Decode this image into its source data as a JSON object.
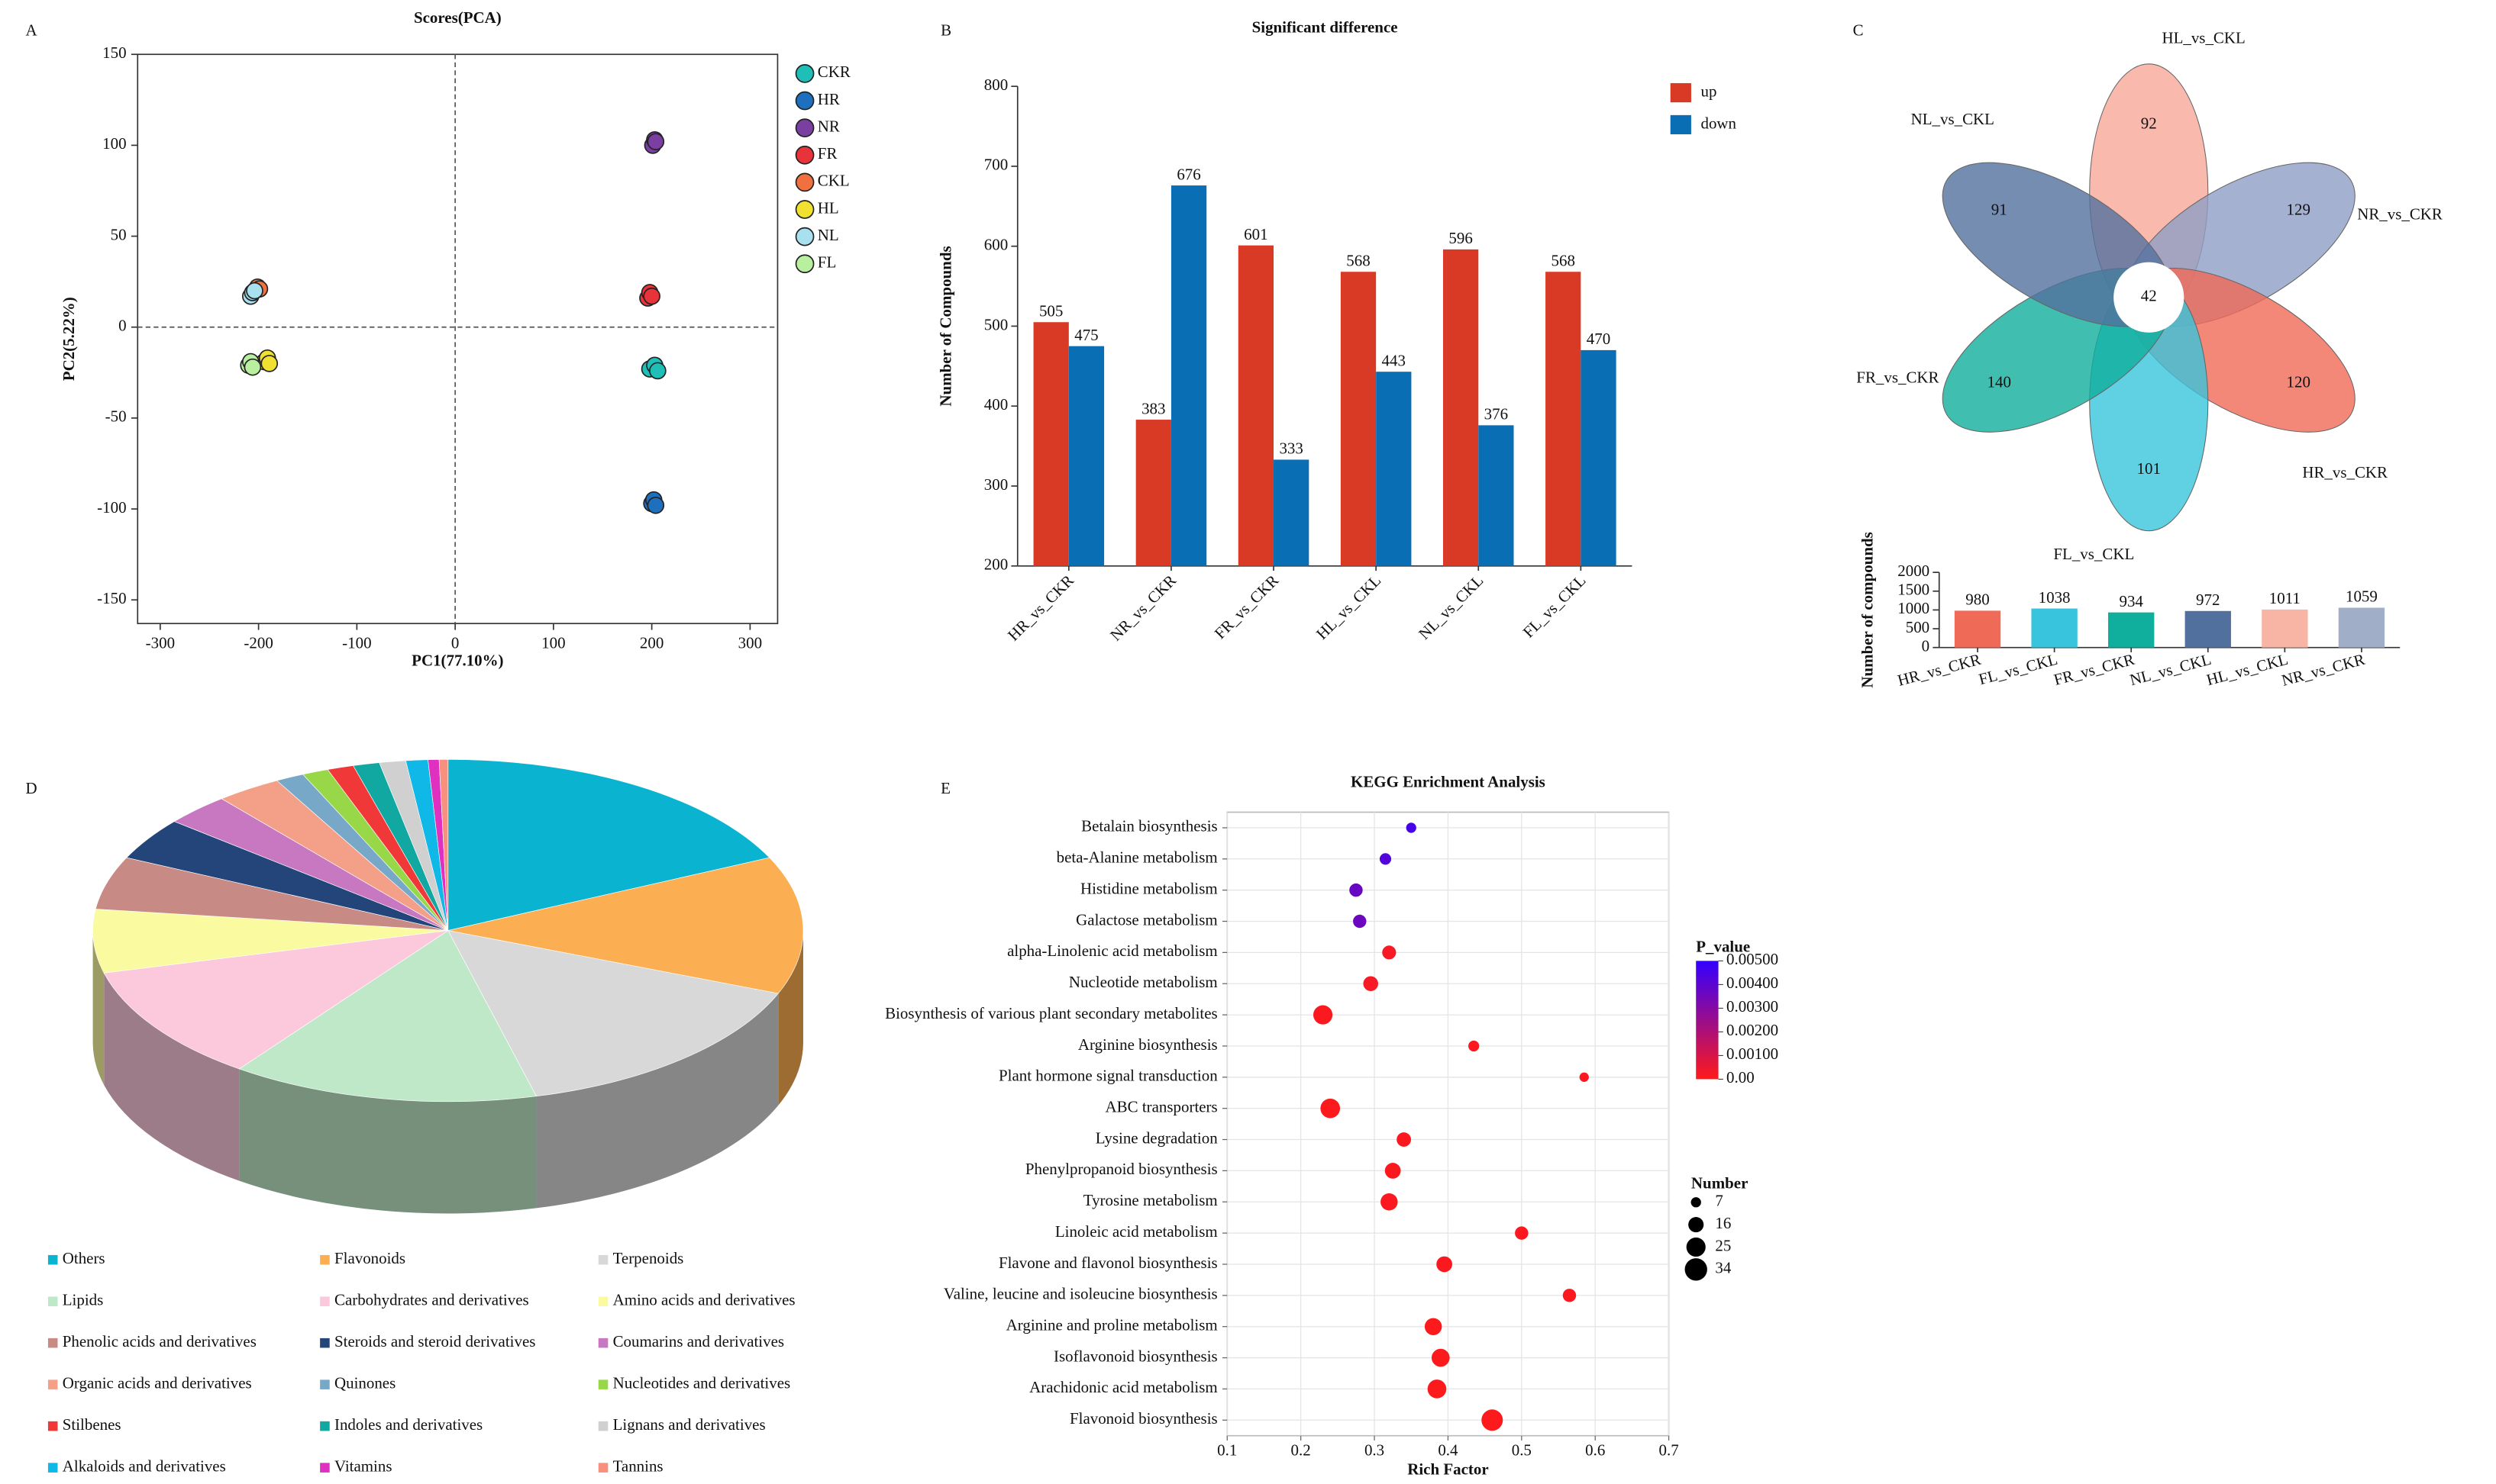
{
  "chart_data": [
    {
      "type": "scatter",
      "panel_label": "A",
      "title": "Scores(PCA)",
      "xlabel": "PC1(77.10%)",
      "ylabel": "PC2(5.22%)",
      "xlim": [
        -323,
        328
      ],
      "ylim": [
        -163,
        150
      ],
      "xticks": [
        -300,
        -200,
        -100,
        0,
        100,
        200,
        300
      ],
      "yticks": [
        -150,
        -100,
        -50,
        0,
        50,
        100,
        150
      ],
      "zero_lines": true,
      "series": [
        {
          "name": "CKR",
          "color": "#1fbfb8",
          "x": [
            198,
            203,
            206
          ],
          "values": [
            -23,
            -21,
            -24
          ]
        },
        {
          "name": "HR",
          "color": "#1f6fbf",
          "x": [
            200,
            202,
            204
          ],
          "values": [
            -97,
            -95,
            -98
          ]
        },
        {
          "name": "NR",
          "color": "#7a3fa0",
          "x": [
            201,
            203,
            204
          ],
          "values": [
            100,
            103,
            102
          ]
        },
        {
          "name": "FR",
          "color": "#e8333a",
          "x": [
            196,
            198,
            200
          ],
          "values": [
            16,
            19,
            17
          ]
        },
        {
          "name": "CKL",
          "color": "#f07040",
          "x": [
            -204,
            -201,
            -199
          ],
          "values": [
            20,
            22,
            21
          ]
        },
        {
          "name": "HL",
          "color": "#f0e030",
          "x": [
            -194,
            -191,
            -189
          ],
          "values": [
            -19,
            -17,
            -20
          ]
        },
        {
          "name": "NL",
          "color": "#a8e0f0",
          "x": [
            -208,
            -206,
            -204
          ],
          "values": [
            17,
            19,
            20
          ]
        },
        {
          "name": "FL",
          "color": "#b8f0a0",
          "x": [
            -210,
            -208,
            -206
          ],
          "values": [
            -21,
            -19,
            -22
          ]
        }
      ]
    },
    {
      "type": "bar",
      "panel_label": "B",
      "title": "Significant difference",
      "ylabel": "Number of Compounds",
      "categories": [
        "HR_vs_CKR",
        "NR_vs_CKR",
        "FR_vs_CKR",
        "HL_vs_CKL",
        "NL_vs_CKL",
        "FL_vs_CKL"
      ],
      "ylim": [
        200,
        800
      ],
      "yticks": [
        200,
        300,
        400,
        500,
        600,
        700,
        800
      ],
      "series": [
        {
          "name": "up",
          "color": "#d93a26",
          "values": [
            505,
            383,
            601,
            568,
            596,
            568
          ]
        },
        {
          "name": "down",
          "color": "#0a6eb4",
          "values": [
            475,
            676,
            333,
            443,
            376,
            470
          ]
        }
      ]
    },
    {
      "type": "flower",
      "panel_label": "C",
      "categories": [
        "HL_vs_CKL",
        "NR_vs_CKR",
        "HR_vs_CKR",
        "FL_vs_CKL",
        "FR_vs_CKR",
        "NL_vs_CKL"
      ],
      "values": [
        92,
        129,
        120,
        101,
        140,
        91
      ],
      "colors": [
        "#f8a898",
        "#8e9ec4",
        "#f06a58",
        "#38c4dc",
        "#10ae9c",
        "#52709e"
      ],
      "core_value": 42
    },
    {
      "type": "bar",
      "ylabel": "Number of compounds",
      "categories": [
        "HR_vs_CKR",
        "FL_vs_CKL",
        "FR_vs_CKR",
        "NL_vs_CKL",
        "HL_vs_CKL",
        "NR_vs_CKR"
      ],
      "values": [
        980,
        1038,
        934,
        972,
        1011,
        1059
      ],
      "colors": [
        "#f06a58",
        "#38c4dc",
        "#10ae9c",
        "#52709e",
        "#f8b4a4",
        "#a0aec8"
      ],
      "ylim": [
        0,
        2000
      ],
      "yticks": [
        0,
        500,
        1000,
        1500,
        2000
      ]
    },
    {
      "type": "pie",
      "panel_label": "D",
      "categories": [
        "Others",
        "Flavonoids",
        "Terpenoids",
        "Lipids",
        "Carbohydrates and derivatives",
        "Amino acids and derivatives",
        "Phenolic acids and derivatives",
        "Steroids and steroid derivatives",
        "Coumarins and derivatives",
        "Organic acids and derivatives",
        "Quinones",
        "Nucleotides and derivatives",
        "Stilbenes",
        "Indoles and derivatives",
        "Lignans and derivatives",
        "Alkaloids and derivatives",
        "Vitamins",
        "Tannins"
      ],
      "values": [
        18,
        13,
        15,
        14,
        11,
        6,
        5,
        4,
        3,
        3,
        1.3,
        1.2,
        1.2,
        1.2,
        1.2,
        1,
        0.5,
        0.4
      ],
      "colors": [
        "#0ab4d0",
        "#fbae52",
        "#d8d8d8",
        "#bfe8c8",
        "#fcc8dc",
        "#fafaa0",
        "#c88a84",
        "#23457a",
        "#c878c0",
        "#f4a088",
        "#78a8c8",
        "#98d848",
        "#f03838",
        "#10a8a0",
        "#d0d0d0",
        "#10b8e8",
        "#e030c0",
        "#f89080"
      ]
    },
    {
      "type": "bubble",
      "panel_label": "E",
      "title": "KEGG Enrichment Analysis",
      "xlabel": "Rich Factor",
      "categories": [
        "Betalain biosynthesis",
        "beta-Alanine metabolism",
        "Histidine metabolism",
        "Galactose metabolism",
        "alpha-Linolenic acid metabolism",
        "Nucleotide metabolism",
        "Biosynthesis of various plant secondary metabolites",
        "Arginine biosynthesis",
        "Plant hormone signal transduction",
        "ABC transporters",
        "Lysine degradation",
        "Phenylpropanoid biosynthesis",
        "Tyrosine metabolism",
        "Linoleic acid metabolism",
        "Flavone and flavonol biosynthesis",
        "Valine, leucine and isoleucine biosynthesis",
        "Arginine and proline metabolism",
        "Isoflavonoid biosynthesis",
        "Arachidonic acid metabolism",
        "Flavonoid biosynthesis"
      ],
      "values": [
        0.35,
        0.315,
        0.275,
        0.28,
        0.32,
        0.295,
        0.23,
        0.435,
        0.585,
        0.24,
        0.34,
        0.325,
        0.32,
        0.5,
        0.395,
        0.565,
        0.38,
        0.39,
        0.385,
        0.46
      ],
      "sizes": [
        7,
        9,
        12,
        12,
        13,
        15,
        25,
        8,
        6,
        26,
        14,
        17,
        20,
        12,
        17,
        12,
        20,
        22,
        24,
        31
      ],
      "p_values": [
        0.0045,
        0.0042,
        0.0037,
        0.0036,
        0.0002,
        0.0002,
        0.0001,
        0.0001,
        0.0001,
        5e-05,
        0.0001,
        0.0001,
        0.0001,
        0.0001,
        0.0001,
        0.0001,
        5e-05,
        5e-05,
        5e-05,
        5e-05
      ],
      "xlim": [
        0.1,
        0.7
      ],
      "xticks": [
        0.1,
        0.2,
        0.3,
        0.4,
        0.5,
        0.6,
        0.7
      ],
      "grid": true,
      "colorbar": {
        "title": "P_value",
        "lim": [
          0,
          0.005
        ],
        "colors": [
          "#ff1a1a",
          "#3300ff"
        ],
        "ticks": [
          {
            "value": 0,
            "label": "0.00"
          },
          {
            "value": 0.001,
            "label": "0.00100"
          },
          {
            "value": 0.002,
            "label": "0.00200"
          },
          {
            "value": 0.003,
            "label": "0.00300"
          },
          {
            "value": 0.004,
            "label": "0.00400"
          },
          {
            "value": 0.005,
            "label": "0.00500"
          }
        ]
      },
      "size_legend": {
        "title": "Number",
        "values": [
          7,
          16,
          25,
          34
        ]
      }
    }
  ]
}
